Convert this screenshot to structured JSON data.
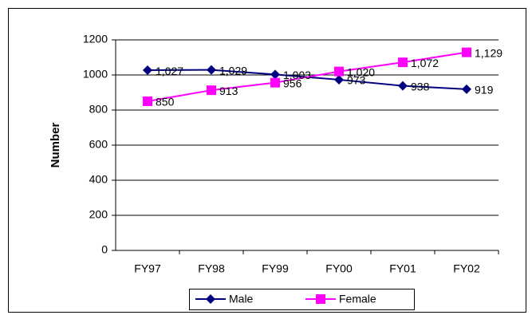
{
  "chart_data": {
    "type": "line",
    "y_label": "Number",
    "categories": [
      "FY97",
      "FY98",
      "FY99",
      "FY00",
      "FY01",
      "FY02"
    ],
    "series": [
      {
        "name": "Male",
        "color": "#000080",
        "marker": "diamond",
        "values": [
          1027,
          1029,
          1003,
          973,
          938,
          919
        ],
        "value_labels": [
          "1,027",
          "1,029",
          "1,003",
          "973",
          "938",
          "919"
        ]
      },
      {
        "name": "Female",
        "color": "#ff00ff",
        "marker": "square",
        "values": [
          850,
          913,
          956,
          1020,
          1072,
          1129
        ],
        "value_labels": [
          "850",
          "913",
          "956",
          "1,020",
          "1,072",
          "1,129"
        ]
      }
    ],
    "ylim": [
      0,
      1200
    ],
    "yticks": [
      0,
      200,
      400,
      600,
      800,
      1000,
      1200
    ],
    "grid": true,
    "legend": "bottom"
  }
}
